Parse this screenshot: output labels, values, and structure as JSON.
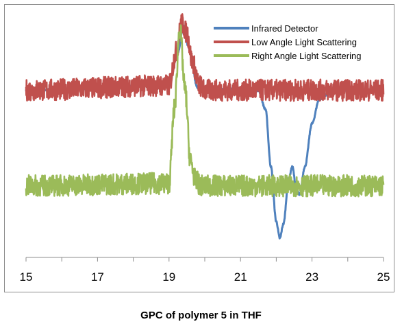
{
  "caption": "GPC of polymer 5 in THF",
  "chart_data": {
    "type": "line",
    "title": "",
    "xlabel": "",
    "ylabel": "",
    "xlim": [
      15,
      25
    ],
    "ylim": [
      0,
      1
    ],
    "x_ticks": [
      15,
      17,
      19,
      21,
      23,
      25
    ],
    "x_tick_labels": [
      "15",
      "17",
      "19",
      "21",
      "23",
      "25"
    ],
    "y_axis_visible": false,
    "grid": false,
    "legend_position": "top-right",
    "series": [
      {
        "name": "Infrared Detector",
        "color": "#4F81BD",
        "x": [
          15,
          19.0,
          19.25,
          19.4,
          19.55,
          19.8,
          21.5,
          21.7,
          21.85,
          22.0,
          22.1,
          22.2,
          22.35,
          22.45,
          22.55,
          22.65,
          22.8,
          23.0,
          23.2,
          23.4,
          23.6,
          25
        ],
        "y": [
          0.7,
          0.72,
          0.86,
          0.97,
          0.88,
          0.71,
          0.7,
          0.62,
          0.38,
          0.15,
          0.08,
          0.14,
          0.33,
          0.38,
          0.3,
          0.26,
          0.38,
          0.56,
          0.66,
          0.68,
          0.7,
          0.7
        ]
      },
      {
        "name": "Low Angle Light Scattering",
        "color": "#C0504D",
        "x": [
          15,
          19.0,
          19.2,
          19.35,
          19.5,
          19.65,
          19.85,
          20.0,
          25
        ],
        "y": [
          0.7,
          0.72,
          0.86,
          0.98,
          0.94,
          0.82,
          0.72,
          0.7,
          0.7
        ]
      },
      {
        "name": "Right Angle Light Scattering",
        "color": "#9BBB59",
        "x": [
          15,
          19.0,
          19.15,
          19.3,
          19.45,
          19.6,
          19.75,
          19.9,
          25
        ],
        "y": [
          0.3,
          0.31,
          0.62,
          0.96,
          0.7,
          0.4,
          0.32,
          0.3,
          0.3
        ]
      }
    ]
  }
}
